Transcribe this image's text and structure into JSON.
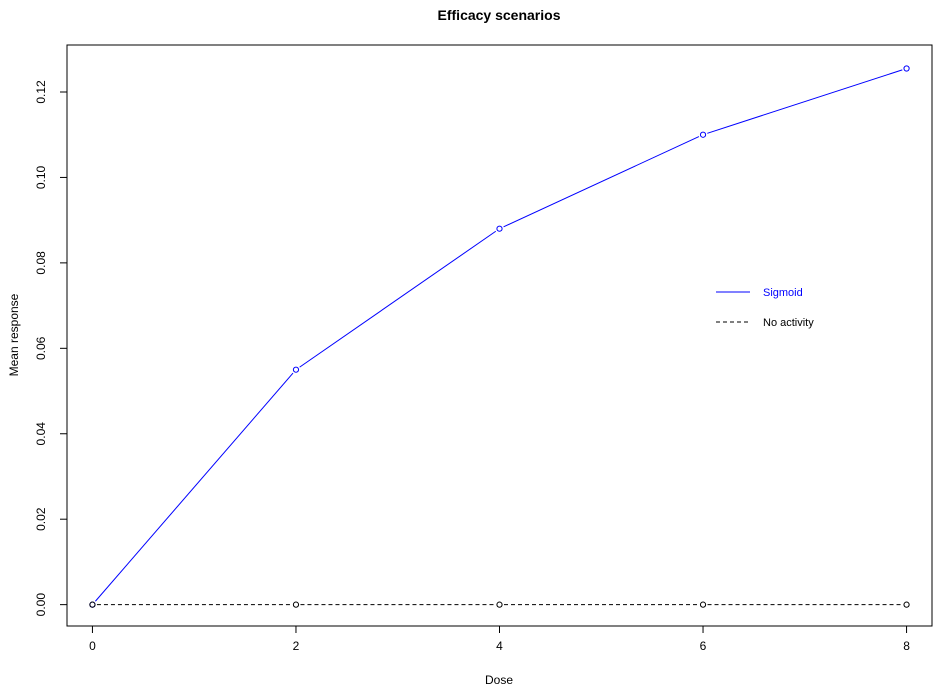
{
  "chart_data": {
    "type": "line",
    "title": "Efficacy scenarios",
    "xlabel": "Dose",
    "ylabel": "Mean response",
    "x": [
      0,
      2,
      4,
      6,
      8
    ],
    "xticks": [
      "0",
      "2",
      "4",
      "6",
      "8"
    ],
    "yticks": [
      "0.00",
      "0.02",
      "0.04",
      "0.06",
      "0.08",
      "0.10",
      "0.12"
    ],
    "xlim": [
      -0.25,
      8.25
    ],
    "ylim": [
      -0.005,
      0.131
    ],
    "grid": false,
    "legend_position": "right-center",
    "series": [
      {
        "name": "Sigmoid",
        "values": [
          0.0,
          0.055,
          0.088,
          0.11,
          0.1255
        ],
        "color": "#0000ff",
        "line_style": "solid",
        "marker": "open-circle"
      },
      {
        "name": "No activity",
        "values": [
          0.0,
          0.0,
          0.0,
          0.0,
          0.0
        ],
        "color": "#000000",
        "line_style": "dashed",
        "marker": "open-circle"
      }
    ]
  }
}
